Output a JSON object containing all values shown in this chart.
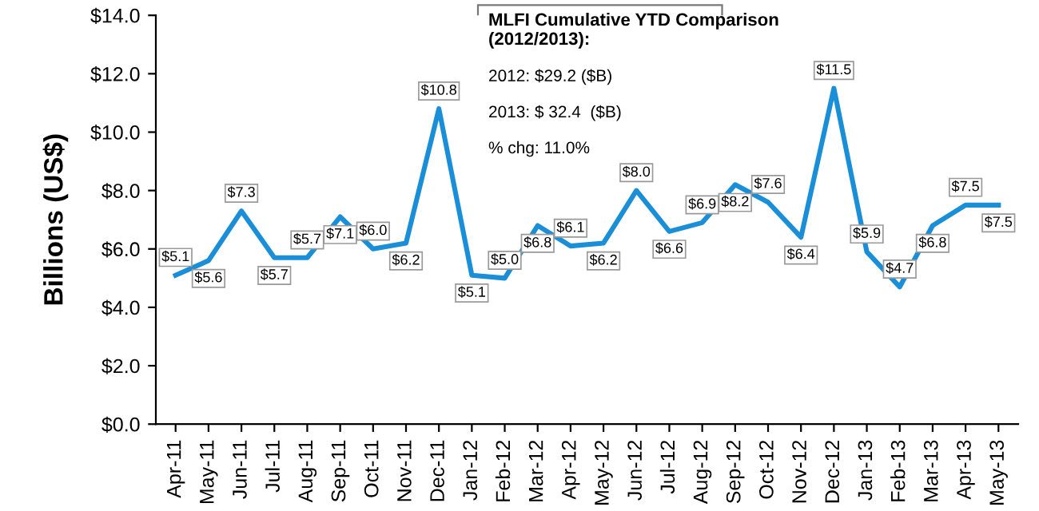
{
  "chart_data": {
    "type": "line",
    "ylabel": "Billions (US$)",
    "categories": [
      "Apr-11",
      "May-11",
      "Jun-11",
      "Jul-11",
      "Aug-11",
      "Sep-11",
      "Oct-11",
      "Nov-11",
      "Dec-11",
      "Jan-12",
      "Feb-12",
      "Mar-12",
      "Apr-12",
      "May-12",
      "Jun-12",
      "Jul-12",
      "Aug-12",
      "Sep-12",
      "Oct-12",
      "Nov-12",
      "Dec-12",
      "Jan-13",
      "Feb-13",
      "Mar-13",
      "Apr-13",
      "May-13"
    ],
    "series": [
      {
        "color": "#1a8fd8",
        "values": [
          5.1,
          5.6,
          7.3,
          5.7,
          5.7,
          7.1,
          6.0,
          6.2,
          10.8,
          5.1,
          5.0,
          6.8,
          6.1,
          6.2,
          8.0,
          6.6,
          6.9,
          8.2,
          7.6,
          6.4,
          11.5,
          5.9,
          4.7,
          6.8,
          7.5,
          7.5
        ],
        "value_labels": [
          "$5.1",
          "$5.6",
          "$7.3",
          "$5.7",
          "$5.7",
          "$7.1",
          "$6.0",
          "$6.2",
          "$10.8",
          "$5.1",
          "$5.0",
          "$6.8",
          "$6.1",
          "$6.2",
          "$8.0",
          "$6.6",
          "$6.9",
          "$8.2",
          "$7.6",
          "$6.4",
          "$11.5",
          "$5.9",
          "$4.7",
          "$6.8",
          "$7.5",
          "$7.5"
        ]
      }
    ],
    "ylim": [
      0,
      14
    ],
    "yticks": [
      {
        "value": 0,
        "label": "$0.0"
      },
      {
        "value": 2,
        "label": "$2.0"
      },
      {
        "value": 4,
        "label": "$4.0"
      },
      {
        "value": 6,
        "label": "$6.0"
      },
      {
        "value": 8,
        "label": "$8.0"
      },
      {
        "value": 10,
        "label": "$10.0"
      },
      {
        "value": 12,
        "label": "$12.0"
      },
      {
        "value": 14,
        "label": "$14.0"
      }
    ],
    "grid": false,
    "legend": false,
    "marker": "none",
    "line_style": "solid",
    "annotations": [
      "MLFI Cumulative YTD Comparison\n(2012/2013):",
      "2012: $29.2 ($B)",
      "2013: $ 32.4  ($B)",
      "% chg: 11.0%"
    ]
  }
}
